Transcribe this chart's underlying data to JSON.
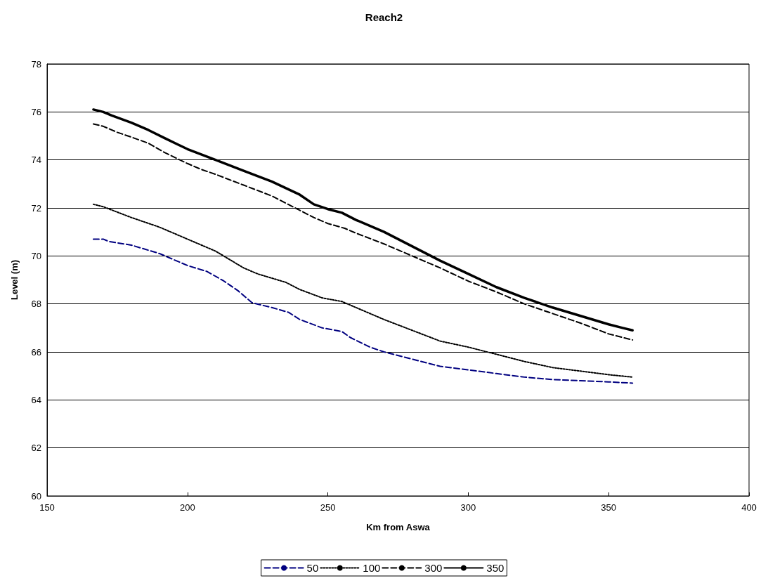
{
  "chart_data": {
    "type": "line",
    "title": "Reach2",
    "xlabel": "Km from Aswa",
    "ylabel": "Level (m)",
    "xlim": [
      150,
      400
    ],
    "xticks": [
      150,
      200,
      250,
      300,
      350,
      400
    ],
    "ylim": [
      60,
      78
    ],
    "yticks": [
      60,
      62,
      64,
      66,
      68,
      70,
      72,
      74,
      76,
      78
    ],
    "grid": "y",
    "legend": "bottom",
    "marker": "none",
    "series": [
      {
        "name": "50",
        "color": "#000080",
        "line_style": "dashed",
        "x": [
          166.5,
          170,
          172,
          180,
          190,
          200,
          207,
          213,
          218,
          223,
          230,
          236,
          240,
          248,
          255,
          258,
          265,
          270,
          280,
          290,
          300,
          310,
          320,
          330,
          340,
          350,
          358.5
        ],
        "values": [
          70.7,
          70.7,
          70.6,
          70.45,
          70.1,
          69.6,
          69.35,
          68.95,
          68.55,
          68.05,
          67.85,
          67.65,
          67.35,
          67.0,
          66.85,
          66.6,
          66.2,
          66.0,
          65.7,
          65.4,
          65.25,
          65.1,
          64.95,
          64.85,
          64.8,
          64.75,
          64.7
        ]
      },
      {
        "name": "100",
        "color": "#000000",
        "line_style": "dotted",
        "x": [
          166.5,
          170,
          180,
          190,
          200,
          210,
          220,
          225,
          235,
          240,
          248,
          255,
          260,
          270,
          280,
          290,
          300,
          310,
          320,
          330,
          340,
          350,
          358.5
        ],
        "values": [
          72.15,
          72.05,
          71.6,
          71.2,
          70.7,
          70.2,
          69.5,
          69.25,
          68.9,
          68.6,
          68.25,
          68.1,
          67.85,
          67.35,
          66.9,
          66.45,
          66.2,
          65.9,
          65.6,
          65.35,
          65.2,
          65.05,
          64.95
        ]
      },
      {
        "name": "300",
        "color": "#000000",
        "line_style": "dashed",
        "x": [
          166.5,
          170,
          175,
          180,
          186,
          192,
          200,
          205,
          210,
          220,
          230,
          240,
          245,
          250,
          256,
          260,
          270,
          280,
          290,
          300,
          310,
          320,
          330,
          340,
          350,
          355,
          358.5
        ],
        "values": [
          75.5,
          75.4,
          75.15,
          74.95,
          74.7,
          74.3,
          73.85,
          73.6,
          73.4,
          72.95,
          72.5,
          71.9,
          71.6,
          71.35,
          71.15,
          70.95,
          70.5,
          70.0,
          69.5,
          68.95,
          68.5,
          68.0,
          67.6,
          67.2,
          66.75,
          66.6,
          66.5
        ]
      },
      {
        "name": "350",
        "color": "#000000",
        "line_style": "solid",
        "x": [
          166.5,
          170,
          173,
          180,
          186,
          192,
          200,
          210,
          220,
          230,
          240,
          245,
          250,
          255,
          260,
          270,
          280,
          290,
          300,
          310,
          320,
          330,
          340,
          350,
          355,
          358.5
        ],
        "values": [
          76.1,
          76.0,
          75.85,
          75.55,
          75.25,
          74.9,
          74.45,
          74.0,
          73.55,
          73.1,
          72.55,
          72.15,
          71.95,
          71.8,
          71.5,
          71.0,
          70.4,
          69.8,
          69.25,
          68.7,
          68.25,
          67.85,
          67.5,
          67.15,
          67.0,
          66.9
        ]
      }
    ]
  }
}
